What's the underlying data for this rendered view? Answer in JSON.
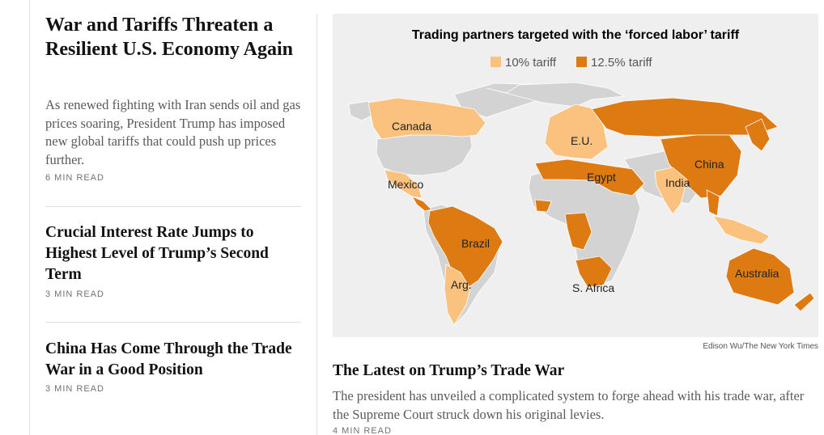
{
  "stories": [
    {
      "headline": "War and Tariffs Threaten a Resilient U.S. Economy Again",
      "summary": "As renewed fighting with Iran sends oil and gas prices soaring, President Trump has imposed new global tariffs that could push up prices further.",
      "read_time": "6 MIN READ"
    },
    {
      "headline": "Crucial Interest Rate Jumps to Highest Level of Trump’s Second Term",
      "read_time": "3 MIN READ"
    },
    {
      "headline": "China Has Come Through the Trade War in a Good Position",
      "read_time": "3 MIN READ"
    }
  ],
  "map": {
    "title": "Trading partners targeted with the ‘forced labor’ tariff",
    "legend": [
      {
        "label": "10% tariff",
        "color": "#fbc27f"
      },
      {
        "label": "12.5% tariff",
        "color": "#dd7a12"
      }
    ],
    "labels": [
      "Canada",
      "Mexico",
      "E.U.",
      "Egypt",
      "China",
      "India",
      "Brazil",
      "Arg.",
      "S. Africa",
      "Australia"
    ],
    "credit": "Edison Wu/The New York Times"
  },
  "feature": {
    "headline": "The Latest on Trump’s Trade War",
    "summary": "The president has unveiled a complicated system to forge ahead with his trade war, after the Supreme Court struck down his original levies.",
    "read_time": "4 MIN READ"
  }
}
